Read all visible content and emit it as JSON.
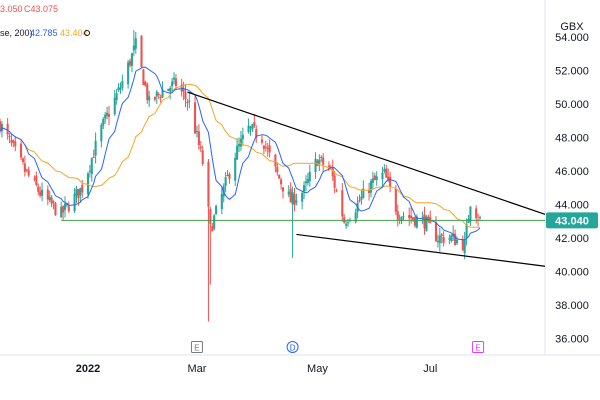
{
  "currency": "GBX",
  "legend": {
    "ohlc_low_fragment": "3.050",
    "ohlc_close_fragment": "C43.075",
    "ma_prefix": "se, 200)",
    "ma_value_1": "42.785",
    "ma_value_2": "43.404"
  },
  "colors": {
    "up": "#26a69a",
    "down": "#ef5350",
    "ma_short": "#2962ff",
    "ma_long": "#f5a623",
    "trendline": "#000000",
    "support": "#43a047",
    "price_tag": "#26a69a",
    "event_dividend": "#2962ff",
    "event_earnings": "#e040fb",
    "event_generic": "#787b86"
  },
  "price_tag": "43.040",
  "events": [
    {
      "date": "2022-03-01",
      "glyph": "E",
      "kind": "generic"
    },
    {
      "date": "2022-04-20",
      "glyph": "D",
      "kind": "dividend"
    },
    {
      "date": "2022-07-26",
      "glyph": "E",
      "kind": "earnings"
    }
  ],
  "chart_data": {
    "type": "candlestick",
    "y_ticks": [
      "54.000",
      "52.000",
      "50.000",
      "48.000",
      "46.000",
      "44.000",
      "42.000",
      "40.000",
      "38.000",
      "36.000"
    ],
    "ylim": [
      35.0,
      56.2
    ],
    "x_ticks": [
      {
        "label": "2022",
        "date": "2022-01-03",
        "bold": true
      },
      {
        "label": "Mar",
        "date": "2022-03-01",
        "bold": false
      },
      {
        "label": "May",
        "date": "2022-05-03",
        "bold": false
      },
      {
        "label": "Jul",
        "date": "2022-07-01",
        "bold": false
      }
    ],
    "xlim": [
      "2021-11-18",
      "2022-08-30"
    ],
    "support_level": 43.04,
    "trendlines": [
      {
        "name": "",
        "from": {
          "date": "2022-02-24",
          "price": 50.7
        },
        "to": {
          "date": "2022-08-30",
          "price": 43.4
        }
      },
      {
        "name": "",
        "from": {
          "date": "2022-04-22",
          "price": 42.2
        },
        "to": {
          "date": "2022-08-30",
          "price": 40.3
        }
      }
    ],
    "moving_averages": [
      {
        "name": "",
        "color_key": "ma_short",
        "last": 42.785
      },
      {
        "name": "",
        "color_key": "ma_long",
        "last": 43.404
      }
    ],
    "candle_anchors": [
      {
        "date": "2021-11-18",
        "price": 48.8
      },
      {
        "date": "2021-12-01",
        "price": 46.0
      },
      {
        "date": "2021-12-10",
        "price": 44.5
      },
      {
        "date": "2021-12-20",
        "price": 43.4
      },
      {
        "date": "2021-12-31",
        "price": 45.0
      },
      {
        "date": "2022-01-10",
        "price": 48.5
      },
      {
        "date": "2022-01-20",
        "price": 51.0
      },
      {
        "date": "2022-01-28",
        "price": 53.5
      },
      {
        "date": "2022-02-04",
        "price": 50.0
      },
      {
        "date": "2022-02-11",
        "price": 50.8
      },
      {
        "date": "2022-02-18",
        "price": 51.2
      },
      {
        "date": "2022-02-25",
        "price": 50.0
      },
      {
        "date": "2022-03-04",
        "price": 46.5
      },
      {
        "date": "2022-03-08",
        "price": 42.5
      },
      {
        "date": "2022-03-14",
        "price": 44.5
      },
      {
        "date": "2022-03-21",
        "price": 47.0
      },
      {
        "date": "2022-03-28",
        "price": 48.5
      },
      {
        "date": "2022-04-04",
        "price": 48.0
      },
      {
        "date": "2022-04-11",
        "price": 46.0
      },
      {
        "date": "2022-04-19",
        "price": 44.2
      },
      {
        "date": "2022-04-26",
        "price": 44.8
      },
      {
        "date": "2022-05-03",
        "price": 46.7
      },
      {
        "date": "2022-05-10",
        "price": 46.0
      },
      {
        "date": "2022-05-17",
        "price": 43.0
      },
      {
        "date": "2022-05-24",
        "price": 44.0
      },
      {
        "date": "2022-05-31",
        "price": 45.2
      },
      {
        "date": "2022-06-07",
        "price": 45.8
      },
      {
        "date": "2022-06-14",
        "price": 43.5
      },
      {
        "date": "2022-06-21",
        "price": 43.2
      },
      {
        "date": "2022-06-28",
        "price": 43.0
      },
      {
        "date": "2022-07-05",
        "price": 42.0
      },
      {
        "date": "2022-07-12",
        "price": 42.0
      },
      {
        "date": "2022-07-19",
        "price": 41.6
      },
      {
        "date": "2022-07-22",
        "price": 44.2
      },
      {
        "date": "2022-07-27",
        "price": 43.07
      }
    ]
  }
}
